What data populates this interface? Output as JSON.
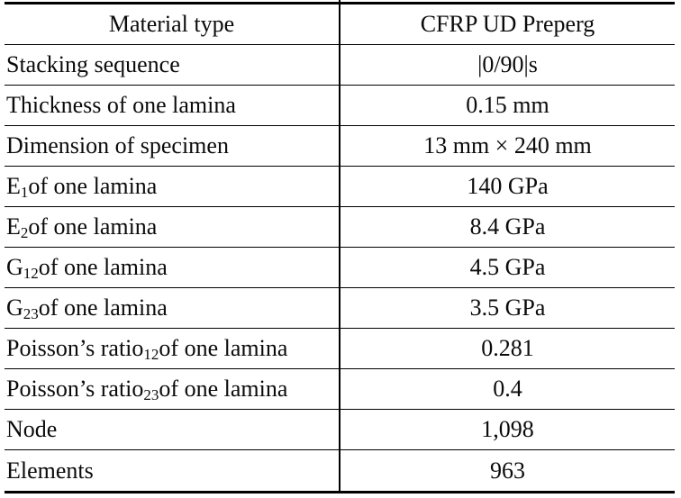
{
  "table": {
    "header": {
      "col1": "Material type",
      "col2": "CFRP UD Preperg"
    },
    "rows": [
      {
        "pre": "Stacking sequence",
        "sub": "",
        "post": "",
        "value": "|0/90|s"
      },
      {
        "pre": "Thickness of one lamina",
        "sub": "",
        "post": "",
        "value": "0.15 mm"
      },
      {
        "pre": "Dimension of specimen",
        "sub": "",
        "post": "",
        "value": "13 mm × 240 mm"
      },
      {
        "pre": "E",
        "sub": "1",
        "post": " of one lamina",
        "value": "140 GPa"
      },
      {
        "pre": "E",
        "sub": "2",
        "post": " of one lamina",
        "value": "8.4 GPa"
      },
      {
        "pre": "G",
        "sub": "12",
        "post": " of one lamina",
        "value": "4.5 GPa"
      },
      {
        "pre": "G",
        "sub": "23",
        "post": " of one lamina",
        "value": "3.5 GPa"
      },
      {
        "pre": "Poisson’s ratio",
        "sub": "12",
        "post": " of one lamina",
        "value": "0.281"
      },
      {
        "pre": "Poisson’s ratio",
        "sub": "23",
        "post": " of one lamina",
        "value": "0.4"
      },
      {
        "pre": "Node",
        "sub": "",
        "post": "",
        "value": "1,098"
      },
      {
        "pre": "Elements",
        "sub": "",
        "post": "",
        "value": "963"
      }
    ]
  },
  "colors": {
    "border": "#000000",
    "text": "#0b0b0b",
    "background": "#ffffff"
  }
}
